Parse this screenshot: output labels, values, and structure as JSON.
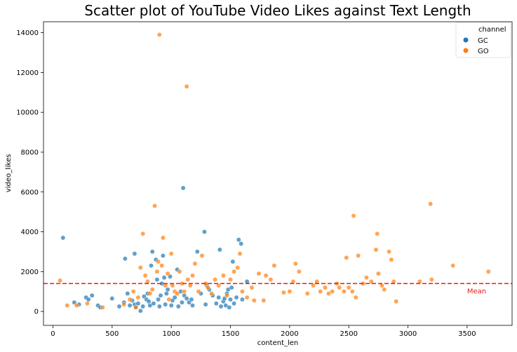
{
  "chart_data": {
    "type": "scatter",
    "title": "Scatter plot of YouTube Video Likes against Text Length",
    "xlabel": "content_len",
    "ylabel": "video_likes",
    "xlim": [
      -80,
      3880
    ],
    "ylim": [
      -700,
      14550
    ],
    "x_ticks": [
      0,
      500,
      1000,
      1500,
      2000,
      2500,
      3000,
      3500
    ],
    "y_ticks": [
      0,
      2000,
      4000,
      6000,
      8000,
      10000,
      12000,
      14000
    ],
    "grid": false,
    "legend": {
      "title": "channel",
      "placement": "top-right",
      "entries": [
        {
          "label": "GC",
          "color": "#1f77b4"
        },
        {
          "label": "GO",
          "color": "#ff7f0e"
        }
      ]
    },
    "mean_line": {
      "value": 1400,
      "label": "Mean",
      "color": "#e41a1c"
    },
    "series": [
      {
        "name": "GC",
        "color": "#1f77b4",
        "points": [
          [
            85,
            3700
          ],
          [
            180,
            450
          ],
          [
            220,
            350
          ],
          [
            280,
            700
          ],
          [
            300,
            600
          ],
          [
            330,
            800
          ],
          [
            380,
            300
          ],
          [
            400,
            200
          ],
          [
            500,
            650
          ],
          [
            560,
            250
          ],
          [
            600,
            450
          ],
          [
            610,
            2650
          ],
          [
            630,
            900
          ],
          [
            650,
            300
          ],
          [
            670,
            550
          ],
          [
            690,
            350
          ],
          [
            690,
            2900
          ],
          [
            700,
            200
          ],
          [
            720,
            400
          ],
          [
            740,
            30
          ],
          [
            760,
            250
          ],
          [
            770,
            750
          ],
          [
            790,
            600
          ],
          [
            800,
            900
          ],
          [
            810,
            500
          ],
          [
            820,
            300
          ],
          [
            830,
            2300
          ],
          [
            840,
            3000
          ],
          [
            850,
            400
          ],
          [
            870,
            2600
          ],
          [
            880,
            1600
          ],
          [
            890,
            600
          ],
          [
            900,
            250
          ],
          [
            910,
            800
          ],
          [
            920,
            1400
          ],
          [
            930,
            2800
          ],
          [
            940,
            1700
          ],
          [
            950,
            350
          ],
          [
            960,
            900
          ],
          [
            970,
            1100
          ],
          [
            990,
            1750
          ],
          [
            1000,
            300
          ],
          [
            1010,
            550
          ],
          [
            1030,
            700
          ],
          [
            1050,
            2100
          ],
          [
            1060,
            250
          ],
          [
            1080,
            1000
          ],
          [
            1090,
            450
          ],
          [
            1100,
            6200
          ],
          [
            1110,
            800
          ],
          [
            1130,
            650
          ],
          [
            1150,
            450
          ],
          [
            1170,
            600
          ],
          [
            1180,
            300
          ],
          [
            1220,
            3000
          ],
          [
            1250,
            900
          ],
          [
            1280,
            4000
          ],
          [
            1290,
            350
          ],
          [
            1300,
            1300
          ],
          [
            1320,
            1100
          ],
          [
            1350,
            800
          ],
          [
            1380,
            400
          ],
          [
            1400,
            700
          ],
          [
            1410,
            3100
          ],
          [
            1420,
            250
          ],
          [
            1440,
            500
          ],
          [
            1450,
            650
          ],
          [
            1460,
            300
          ],
          [
            1470,
            900
          ],
          [
            1480,
            1100
          ],
          [
            1490,
            200
          ],
          [
            1500,
            600
          ],
          [
            1510,
            1200
          ],
          [
            1520,
            2500
          ],
          [
            1530,
            400
          ],
          [
            1550,
            700
          ],
          [
            1570,
            3600
          ],
          [
            1590,
            3400
          ],
          [
            1600,
            600
          ],
          [
            1640,
            1500
          ]
        ]
      },
      {
        "name": "GO",
        "color": "#ff7f0e",
        "points": [
          [
            60,
            1550
          ],
          [
            120,
            300
          ],
          [
            200,
            300
          ],
          [
            290,
            400
          ],
          [
            420,
            200
          ],
          [
            600,
            350
          ],
          [
            650,
            600
          ],
          [
            680,
            1000
          ],
          [
            700,
            200
          ],
          [
            720,
            700
          ],
          [
            740,
            2200
          ],
          [
            760,
            3900
          ],
          [
            780,
            1800
          ],
          [
            800,
            1500
          ],
          [
            820,
            900
          ],
          [
            840,
            1100
          ],
          [
            860,
            5300
          ],
          [
            880,
            2000
          ],
          [
            890,
            2500
          ],
          [
            900,
            13900
          ],
          [
            920,
            2300
          ],
          [
            930,
            3700
          ],
          [
            950,
            1300
          ],
          [
            970,
            1900
          ],
          [
            980,
            600
          ],
          [
            1000,
            2900
          ],
          [
            1010,
            1300
          ],
          [
            1030,
            1000
          ],
          [
            1050,
            900
          ],
          [
            1070,
            2000
          ],
          [
            1090,
            1400
          ],
          [
            1110,
            1000
          ],
          [
            1130,
            11300
          ],
          [
            1140,
            1600
          ],
          [
            1160,
            1300
          ],
          [
            1180,
            1800
          ],
          [
            1200,
            2400
          ],
          [
            1230,
            1000
          ],
          [
            1260,
            2800
          ],
          [
            1290,
            1400
          ],
          [
            1310,
            1200
          ],
          [
            1340,
            900
          ],
          [
            1370,
            1600
          ],
          [
            1400,
            1300
          ],
          [
            1440,
            1800
          ],
          [
            1470,
            800
          ],
          [
            1500,
            1600
          ],
          [
            1530,
            2000
          ],
          [
            1560,
            2200
          ],
          [
            1580,
            2900
          ],
          [
            1600,
            1000
          ],
          [
            1640,
            700
          ],
          [
            1680,
            1200
          ],
          [
            1700,
            550
          ],
          [
            1740,
            1900
          ],
          [
            1780,
            550
          ],
          [
            1800,
            1800
          ],
          [
            1840,
            1600
          ],
          [
            1870,
            2300
          ],
          [
            1950,
            950
          ],
          [
            2000,
            1000
          ],
          [
            2030,
            1500
          ],
          [
            2050,
            2400
          ],
          [
            2080,
            2000
          ],
          [
            2150,
            900
          ],
          [
            2200,
            1300
          ],
          [
            2230,
            1500
          ],
          [
            2260,
            1000
          ],
          [
            2300,
            1200
          ],
          [
            2330,
            900
          ],
          [
            2360,
            1000
          ],
          [
            2400,
            1400
          ],
          [
            2420,
            1200
          ],
          [
            2460,
            1000
          ],
          [
            2480,
            2700
          ],
          [
            2500,
            1200
          ],
          [
            2530,
            1000
          ],
          [
            2540,
            4800
          ],
          [
            2560,
            700
          ],
          [
            2580,
            2800
          ],
          [
            2620,
            1400
          ],
          [
            2650,
            1700
          ],
          [
            2690,
            1500
          ],
          [
            2730,
            3100
          ],
          [
            2740,
            3900
          ],
          [
            2750,
            1900
          ],
          [
            2780,
            1300
          ],
          [
            2800,
            1100
          ],
          [
            2840,
            3000
          ],
          [
            2860,
            2600
          ],
          [
            2880,
            1500
          ],
          [
            2900,
            500
          ],
          [
            3100,
            1500
          ],
          [
            3190,
            5400
          ],
          [
            3200,
            1600
          ],
          [
            3380,
            2300
          ],
          [
            3680,
            2000
          ]
        ]
      }
    ]
  }
}
